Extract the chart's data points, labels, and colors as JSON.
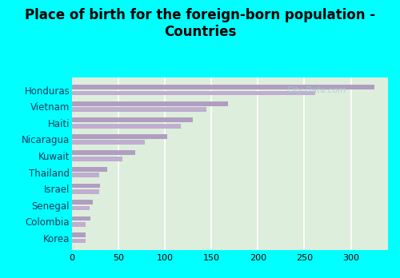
{
  "title": "Place of birth for the foreign-born population -\nCountries",
  "categories": [
    "Honduras",
    "Vietnam",
    "Haiti",
    "Nicaragua",
    "Kuwait",
    "Thailand",
    "Israel",
    "Senegal",
    "Colombia",
    "Korea"
  ],
  "values1": [
    325,
    168,
    130,
    102,
    68,
    38,
    30,
    22,
    20,
    15
  ],
  "values2": [
    262,
    145,
    117,
    78,
    54,
    29,
    29,
    19,
    15,
    15
  ],
  "bar_color1": "#b09ec0",
  "bar_color2": "#c0aed0",
  "background_outer": "#00ffff",
  "background_inner_tl": "#d8efd8",
  "background_inner_br": "#f0faf0",
  "xlim": [
    0,
    340
  ],
  "xticks": [
    0,
    50,
    100,
    150,
    200,
    250,
    300
  ],
  "title_fontsize": 12,
  "label_fontsize": 8.5,
  "tick_fontsize": 8,
  "watermark": "City-Data.com"
}
